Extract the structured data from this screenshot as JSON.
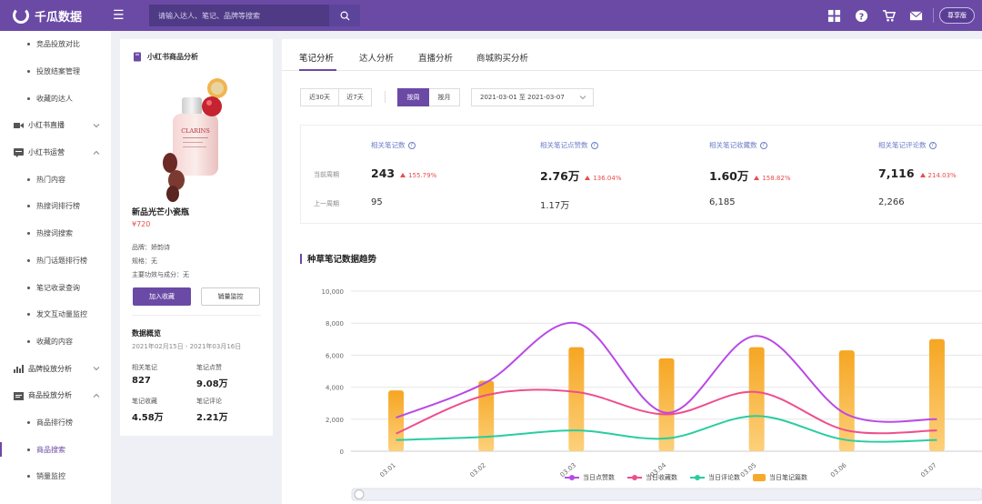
{
  "brand": {
    "name": "千瓜数据",
    "accent": "#6a4aa5"
  },
  "search": {
    "placeholder": "请输入达人、笔记、品牌等搜索"
  },
  "topbar": {
    "icons": [
      "grid-icon",
      "help-icon",
      "cart-icon",
      "mail-icon"
    ],
    "vip_label": "尊享版"
  },
  "sidebar": {
    "items": [
      {
        "label": "竞品投放对比",
        "type": "sub"
      },
      {
        "label": "投放结案管理",
        "type": "sub"
      },
      {
        "label": "收藏的达人",
        "type": "sub"
      },
      {
        "label": "小红书直播",
        "type": "group",
        "icon": "video-icon",
        "expanded": false
      },
      {
        "label": "小红书运营",
        "type": "group",
        "icon": "chat-icon",
        "expanded": true
      },
      {
        "label": "热门内容",
        "type": "sub"
      },
      {
        "label": "热搜词排行榜",
        "type": "sub"
      },
      {
        "label": "热搜词搜索",
        "type": "sub"
      },
      {
        "label": "热门话题排行榜",
        "type": "sub"
      },
      {
        "label": "笔记收录查询",
        "type": "sub"
      },
      {
        "label": "发文互动量监控",
        "type": "sub"
      },
      {
        "label": "收藏的内容",
        "type": "sub"
      },
      {
        "label": "品牌投放分析",
        "type": "group",
        "icon": "bar-chart-icon",
        "expanded": false
      },
      {
        "label": "商品投放分析",
        "type": "group",
        "icon": "shop-icon",
        "expanded": true
      },
      {
        "label": "商品排行榜",
        "type": "sub"
      },
      {
        "label": "商品搜索",
        "type": "sub",
        "active": true
      },
      {
        "label": "销量监控",
        "type": "sub"
      }
    ]
  },
  "product": {
    "section_title": "小红书商品分析",
    "name": "新品光芒小瓷瓶",
    "price": "¥720",
    "brand": "品牌：娇韵诗",
    "spec": "规格：无",
    "ingredients": "主要功效与成分：无",
    "image_brand_text": "CLARINS",
    "add_fav_label": "加入收藏",
    "sales_monitor_label": "销量监控",
    "overview": {
      "title": "数据概览",
      "range": "2021年02月15日 - 2021年03月16日",
      "stats": [
        {
          "label": "相关笔记",
          "value": "827"
        },
        {
          "label": "笔记点赞",
          "value": "9.08万"
        },
        {
          "label": "笔记收藏",
          "value": "4.58万"
        },
        {
          "label": "笔记评论",
          "value": "2.21万"
        }
      ]
    }
  },
  "main": {
    "tabs": [
      {
        "label": "笔记分析",
        "active": true
      },
      {
        "label": "达人分析"
      },
      {
        "label": "直播分析"
      },
      {
        "label": "商城购买分析"
      }
    ],
    "range_buttons": [
      {
        "label": "近30天"
      },
      {
        "label": "近7天"
      }
    ],
    "period_buttons": [
      {
        "label": "按周",
        "selected": true
      },
      {
        "label": "按月"
      }
    ],
    "date_range": "2021-03-01 至 2021-03-07",
    "row_labels": {
      "current": "当前周期",
      "previous": "上一周期"
    },
    "metrics": [
      {
        "label": "相关笔记数",
        "current": "243",
        "change": "155.79%",
        "previous": "95"
      },
      {
        "label": "相关笔记点赞数",
        "current": "2.76万",
        "change": "136.04%",
        "previous": "1.17万"
      },
      {
        "label": "相关笔记收藏数",
        "current": "1.60万",
        "change": "158.82%",
        "previous": "6,185"
      },
      {
        "label": "相关笔记评论数",
        "current": "7,116",
        "change": "214.03%",
        "previous": "2,266"
      }
    ],
    "chart_title": "种草笔记数据趋势"
  },
  "chart_data": {
    "type": "bar",
    "title": "种草笔记数据趋势",
    "categories": [
      "03.01",
      "03.02",
      "03.03",
      "03.04",
      "03.05",
      "03.06",
      "03.07"
    ],
    "ylim": [
      0,
      10000
    ],
    "yticks": [
      0,
      2000,
      4000,
      6000,
      8000,
      10000
    ],
    "ytick_labels": [
      "0",
      "2,000",
      "4,000",
      "6,000",
      "8,000",
      "10,000"
    ],
    "grid": true,
    "legend_position": "bottom",
    "series": [
      {
        "name": "当日点赞数",
        "kind": "line",
        "color": "#b84ae6",
        "values": [
          2100,
          4300,
          8000,
          2400,
          7200,
          2300,
          2000
        ]
      },
      {
        "name": "当日收藏数",
        "kind": "line",
        "color": "#ee4f8c",
        "values": [
          1100,
          3500,
          3700,
          2300,
          3700,
          1300,
          1300
        ]
      },
      {
        "name": "当日评论数",
        "kind": "line",
        "color": "#29cda0",
        "values": [
          700,
          900,
          1300,
          800,
          2200,
          700,
          700
        ]
      },
      {
        "name": "当日笔记篇数",
        "kind": "bar",
        "color": "#f7a92b",
        "values": [
          3800,
          4400,
          6500,
          5800,
          6500,
          6300,
          7000
        ]
      }
    ]
  }
}
